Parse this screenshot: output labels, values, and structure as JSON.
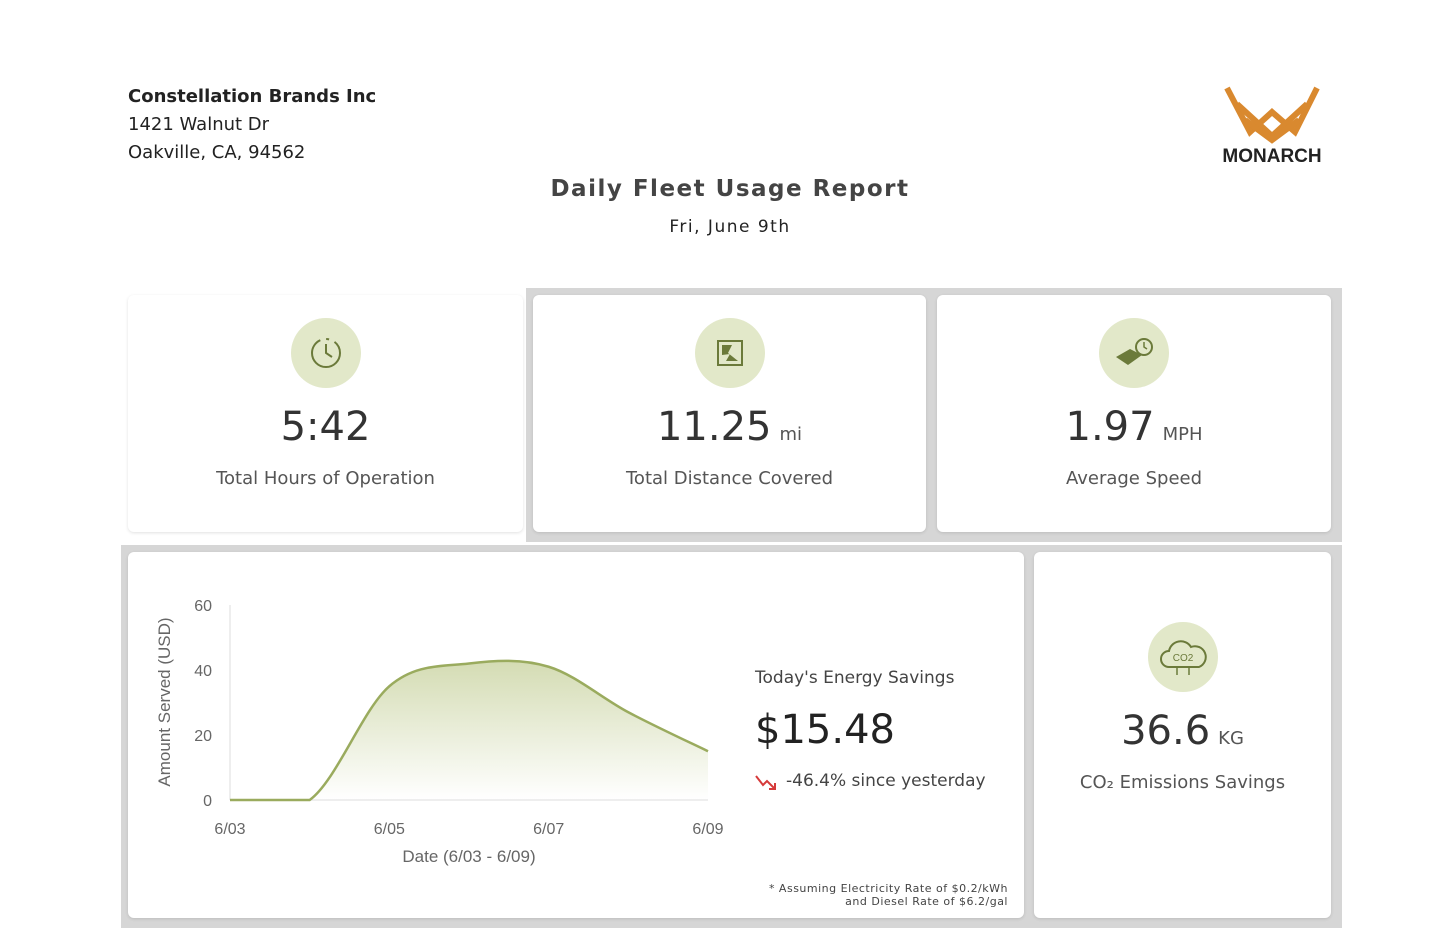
{
  "header": {
    "company": "Constellation Brands Inc",
    "street": "1421 Walnut Dr",
    "city": "Oakville, CA, 94562",
    "logo": "MONARCH",
    "title": "Daily Fleet Usage Report",
    "date": "Fri, June 9th"
  },
  "metrics": [
    {
      "value": "5:42",
      "label": "Total Hours of Operation"
    },
    {
      "value": "11.25",
      "unit": "mi",
      "label": "Total Distance Covered"
    },
    {
      "value": "1.97",
      "unit": "MPH",
      "label": "Average Speed"
    }
  ],
  "chart_data": {
    "type": "line",
    "x_label": "Date (6/03 - 6/09)",
    "y_label": "Amount Served (USD)",
    "categories": [
      "6/03",
      null,
      "6/05",
      null,
      "6/07",
      null,
      "6/09"
    ],
    "values": [
      0,
      0,
      35,
      42,
      41,
      27,
      15
    ],
    "color": "#9aab5e",
    "ylim": [
      0,
      60
    ],
    "yticks": [
      0,
      20,
      40,
      60
    ]
  },
  "energy": {
    "label": "Today's Energy Savings",
    "value": "$15.48",
    "change": "-46.4% since yesterday",
    "note": [
      "* Assuming Electricity Rate of $0.2/kWh",
      "and Diesel Rate of $6.2/gal"
    ]
  },
  "emissions": {
    "value": "36.6",
    "unit": "KG",
    "label": "CO₂ Emissions Savings"
  }
}
